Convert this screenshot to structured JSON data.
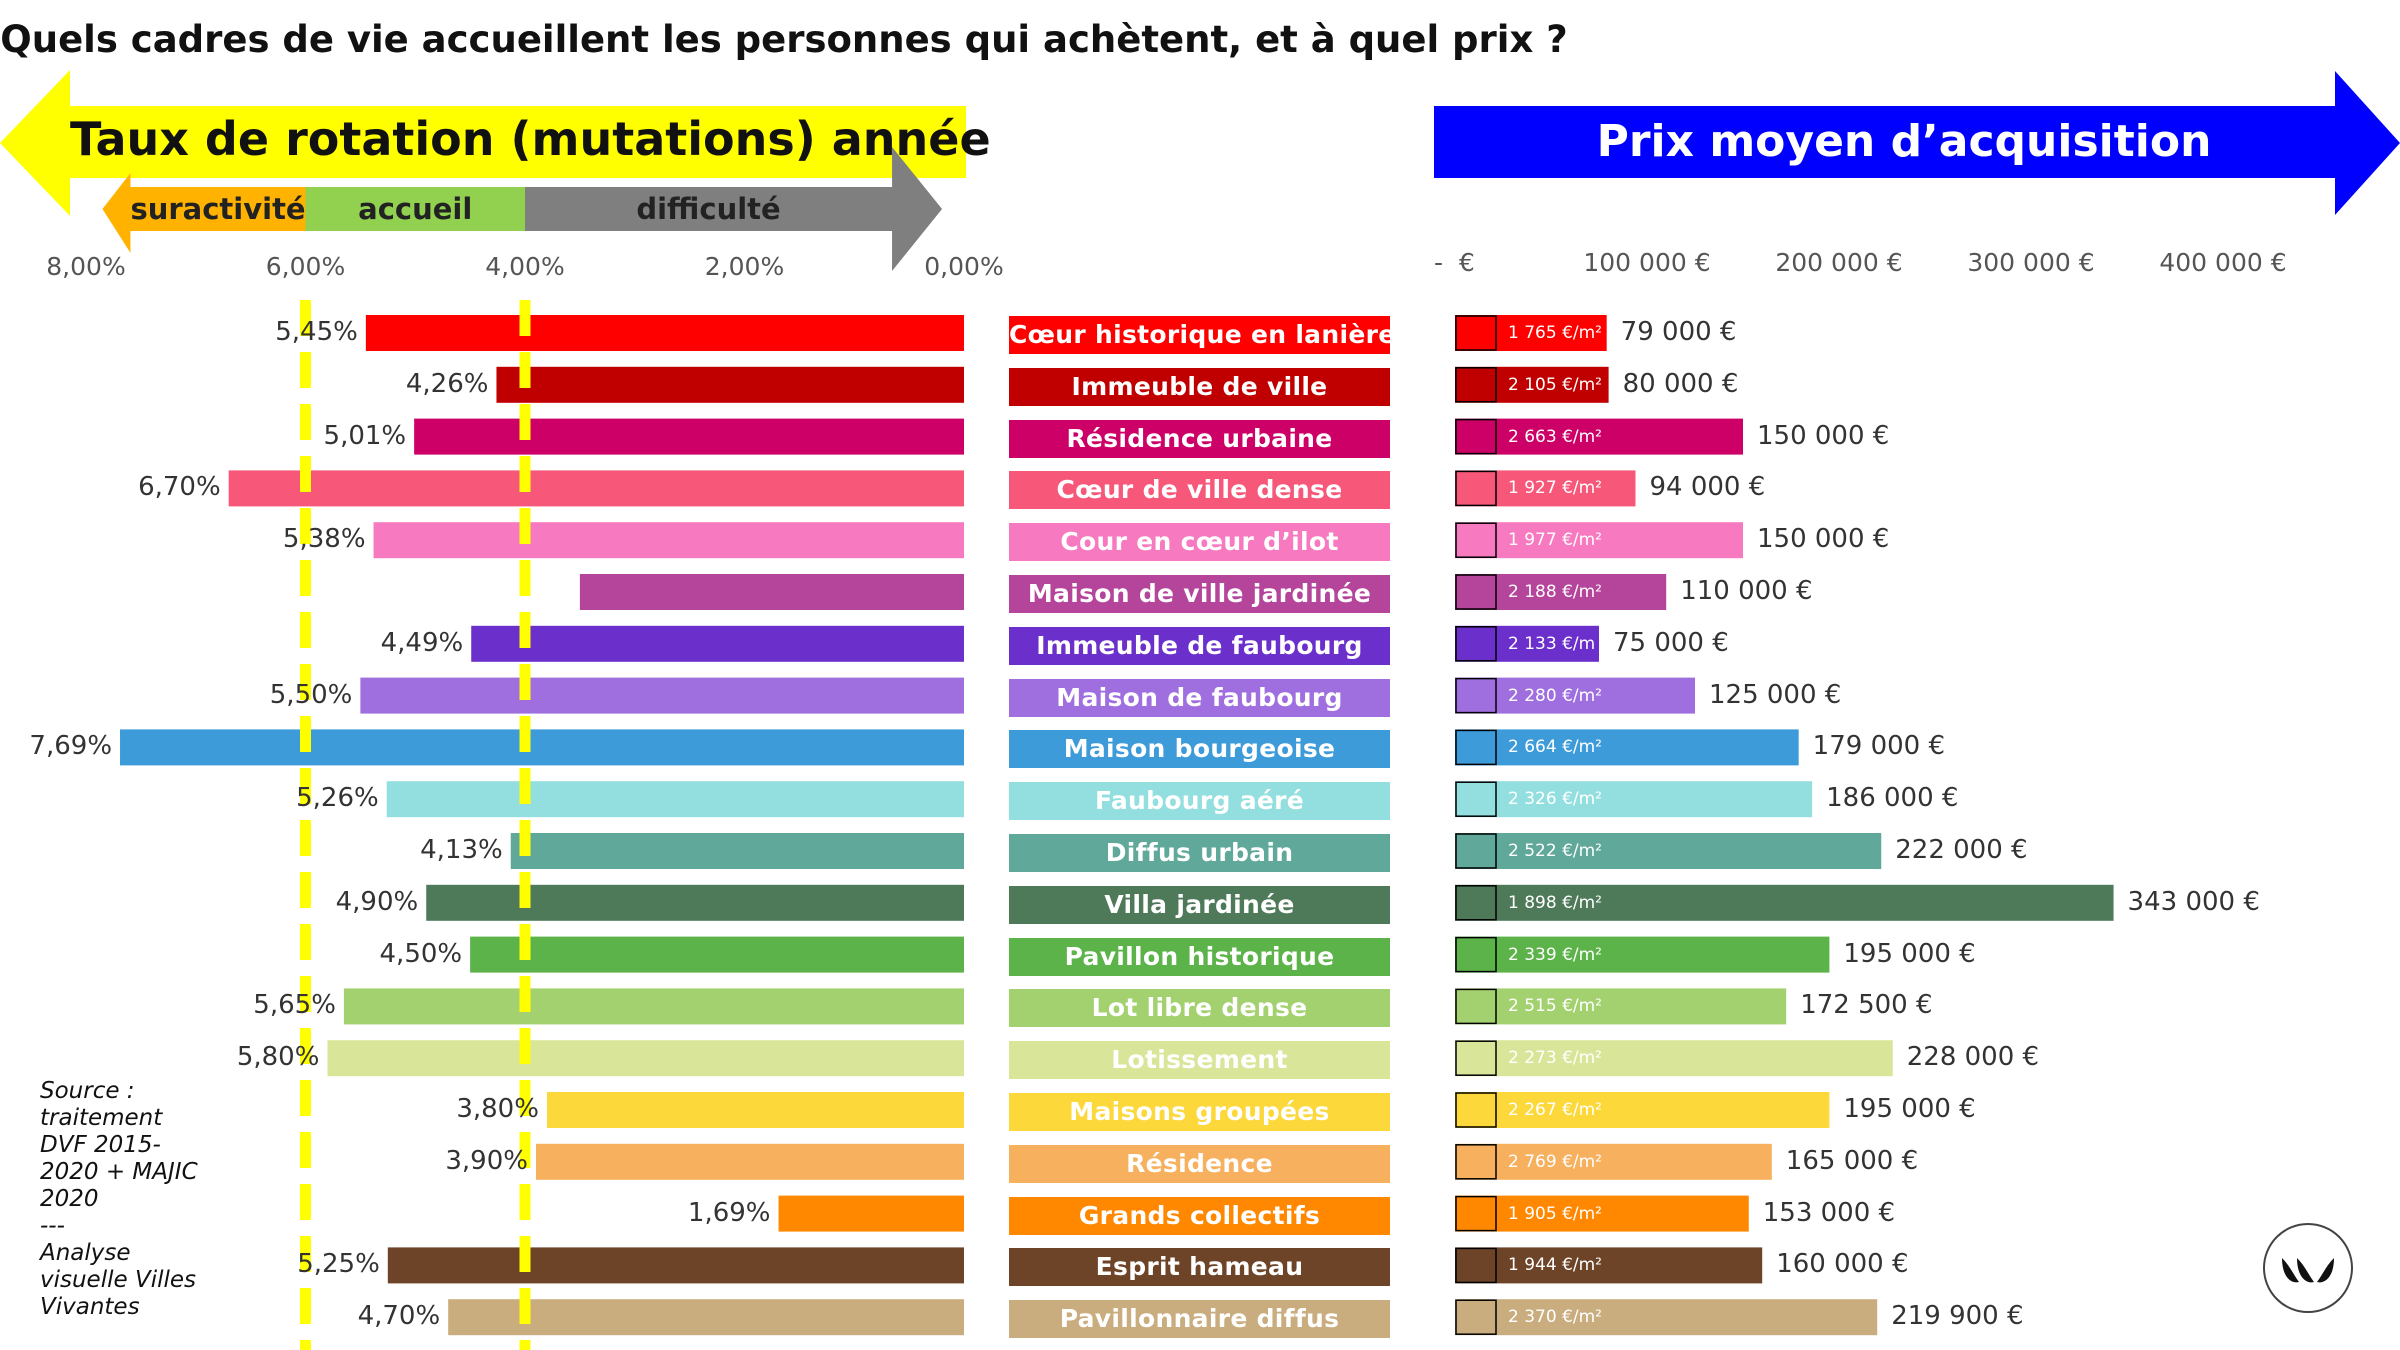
{
  "title": "Quels cadres de vie accueillent les personnes qui achètent, et à quel prix ?",
  "left_banner": "Taux de rotation (mutations) année",
  "right_banner": "Prix moyen d’acquisition",
  "zones": [
    "suractivité",
    "accueil",
    "difficulté"
  ],
  "colors": {
    "yellow": "#ffff00",
    "blue": "#0000ff",
    "zone_orange": "#ffb300",
    "zone_green": "#92d050",
    "zone_grey": "#7f7f7f"
  },
  "source_lines": [
    "Source :",
    "traitement",
    "DVF 2015-",
    "2020 + MAJIC",
    "2020",
    "---",
    "Analyse",
    "visuelle Villes",
    "Vivantes"
  ],
  "chart_data": [
    {
      "type": "bar",
      "title": "Taux de rotation (mutations) année",
      "orientation": "horizontal-reversed",
      "xlim": [
        0,
        0.08
      ],
      "tick_labels": [
        "8,00%",
        "6,00%",
        "4,00%",
        "2,00%",
        "0,00%"
      ],
      "tick_values": [
        0.08,
        0.06,
        0.04,
        0.02,
        0
      ],
      "reference_lines": [
        0.06,
        0.04
      ],
      "zones": [
        {
          "name": "suractivité",
          "from": 0.0785,
          "to": 0.06
        },
        {
          "name": "accueil",
          "from": 0.06,
          "to": 0.04
        },
        {
          "name": "difficulté",
          "from": 0.04,
          "to": 0.002
        }
      ],
      "categories": [
        "Cœur historique en lanière",
        "Immeuble de ville",
        "Résidence urbaine",
        "Cœur de ville dense",
        "Cour en cœur d’ilot",
        "Maison de ville jardinée",
        "Immeuble de faubourg",
        "Maison de faubourg",
        "Maison bourgeoise",
        "Faubourg aéré",
        "Diffus urbain",
        "Villa jardinée",
        "Pavillon historique",
        "Lot libre dense",
        "Lotissement",
        "Maisons groupées",
        "Résidence",
        "Grands collectifs",
        "Esprit hameau",
        "Pavillonnaire diffus"
      ],
      "values": [
        0.0545,
        0.0426,
        0.0501,
        0.067,
        0.0538,
        0.035,
        0.0449,
        0.055,
        0.0769,
        0.0526,
        0.0413,
        0.049,
        0.045,
        0.0565,
        0.058,
        0.038,
        0.039,
        0.0169,
        0.0525,
        0.047
      ],
      "value_labels": [
        "5,45%",
        "4,26%",
        "5,01%",
        "6,70%",
        "5,38%",
        "",
        "4,49%",
        "5,50%",
        "7,69%",
        "5,26%",
        "4,13%",
        "4,90%",
        "4,50%",
        "5,65%",
        "5,80%",
        "3,80%",
        "3,90%",
        "1,69%",
        "5,25%",
        "4,70%"
      ],
      "colors": [
        "#ff0000",
        "#c00000",
        "#cc0066",
        "#f7587a",
        "#f77ac0",
        "#b5459b",
        "#6b2fcc",
        "#9f6fdf",
        "#3d9bd9",
        "#93dfe0",
        "#5fa89a",
        "#4f7a5a",
        "#5cb34a",
        "#a3d16f",
        "#d9e69a",
        "#fcd83b",
        "#f7b05e",
        "#ff8800",
        "#6e4428",
        "#c9ad7f"
      ]
    },
    {
      "type": "bar",
      "title": "Prix moyen d’acquisition",
      "orientation": "horizontal",
      "xlim": [
        0,
        400000
      ],
      "tick_labels": [
        "-  €",
        "100 000 €",
        "200 000 €",
        "300 000 €",
        "400 000 €"
      ],
      "tick_values": [
        0,
        100000,
        200000,
        300000,
        400000
      ],
      "categories": [
        "Cœur historique en lanière",
        "Immeuble de ville",
        "Résidence urbaine",
        "Cœur de ville dense",
        "Cour en cœur d’ilot",
        "Maison de ville jardinée",
        "Immeuble de faubourg",
        "Maison de faubourg",
        "Maison bourgeoise",
        "Faubourg aéré",
        "Diffus urbain",
        "Villa jardinée",
        "Pavillon historique",
        "Lot libre dense",
        "Lotissement",
        "Maisons groupées",
        "Résidence",
        "Grands collectifs",
        "Esprit hameau",
        "Pavillonnaire diffus"
      ],
      "values": [
        79000,
        80000,
        150000,
        94000,
        150000,
        110000,
        75000,
        125000,
        179000,
        186000,
        222000,
        343000,
        195000,
        172500,
        228000,
        195000,
        165000,
        153000,
        160000,
        219900
      ],
      "value_labels": [
        "79 000 €",
        "80 000 €",
        "150 000 €",
        "94 000 €",
        "150 000 €",
        "110 000 €",
        "75 000 €",
        "125 000 €",
        "179 000 €",
        "186 000 €",
        "222 000 €",
        "343 000 €",
        "195 000 €",
        "172 500 €",
        "228 000 €",
        "195 000 €",
        "165 000 €",
        "153 000 €",
        "160 000 €",
        "219 900 €"
      ],
      "price_per_sqm_labels": [
        "1 765 €/m²",
        "2 105 €/m²",
        "2 663 €/m²",
        "1 927 €/m²",
        "1 977 €/m²",
        "2 188 €/m²",
        "2 133 €/m",
        "2 280 €/m²",
        "2 664 €/m²",
        "2 326 €/m²",
        "2 522 €/m²",
        "1 898 €/m²",
        "2 339 €/m²",
        "2 515 €/m²",
        "2 273 €/m²",
        "2 267 €/m²",
        "2 769 €/m²",
        "1 905 €/m²",
        "1 944 €/m²",
        "2 370 €/m²"
      ],
      "price_per_sqm_values": [
        1765,
        2105,
        2663,
        1927,
        1977,
        2188,
        2133,
        2280,
        2664,
        2326,
        2522,
        1898,
        2339,
        2515,
        2273,
        2267,
        2769,
        1905,
        1944,
        2370
      ]
    }
  ]
}
